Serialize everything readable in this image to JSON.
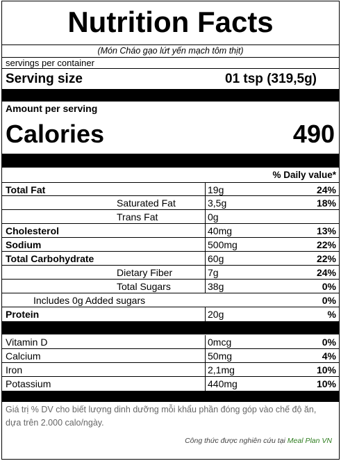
{
  "title": "Nutrition Facts",
  "subtitle": "(Món Cháo gạo lứt yến mạch tôm thịt)",
  "servings_per_container": "servings per container",
  "serving_size": {
    "label": "Serving size",
    "value": "01 tsp  (319,5g)"
  },
  "amount_per_serving": "Amount per serving",
  "calories": {
    "label": "Calories",
    "value": "490"
  },
  "daily_value_header": "% Daily value*",
  "nutrients": [
    {
      "name": "Total Fat",
      "amount": "19g",
      "dv": "24%"
    },
    {
      "name": "Saturated Fat",
      "amount": "3,5g",
      "dv": "18%"
    },
    {
      "name": "Trans Fat",
      "amount": "0g",
      "dv": ""
    },
    {
      "name": "Cholesterol",
      "amount": "40mg",
      "dv": "13%"
    },
    {
      "name": "Sodium",
      "amount": "500mg",
      "dv": "22%"
    },
    {
      "name": "Total Carbohydrate",
      "amount": "60g",
      "dv": "22%"
    },
    {
      "name": "Dietary Fiber",
      "amount": "7g",
      "dv": "24%"
    },
    {
      "name": "Total Sugars",
      "amount": "38g",
      "dv": "0%"
    },
    {
      "name": "Includes 0g Added sugars",
      "amount": "",
      "dv": "0%"
    },
    {
      "name": "Protein",
      "amount": "20g",
      "dv": "%"
    }
  ],
  "vitamins": [
    {
      "name": "Vitamin D",
      "amount": "0mcg",
      "dv": "0%"
    },
    {
      "name": "Calcium",
      "amount": "50mg",
      "dv": "4%"
    },
    {
      "name": "Iron",
      "amount": "2,1mg",
      "dv": "10%"
    },
    {
      "name": "Potassium",
      "amount": "440mg",
      "dv": "10%"
    }
  ],
  "footnote": "Giá trị % DV cho biết lượng dinh dưỡng mỗi khẩu phần đóng góp vào chế độ ăn, dựa trên 2.000 calo/ngày.",
  "credit": {
    "prefix": "Công thức được nghiên cứu tại ",
    "source": "Meal Plan VN"
  }
}
